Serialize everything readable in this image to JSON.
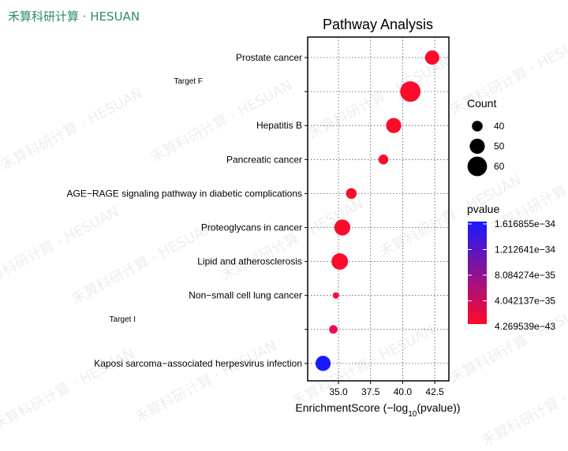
{
  "brand": {
    "text": "禾算科研计算 · HESUAN",
    "color": "#2e8b6e"
  },
  "chart_data": {
    "type": "scatter",
    "title": "Pathway Analysis",
    "xlabel": "EnrichmentScore (−log10(pvalue))",
    "xlim": [
      32.6,
      43.6
    ],
    "xticks": [
      35.0,
      37.5,
      40.0,
      42.5
    ],
    "xtick_labels": [
      "35.0",
      "37.5",
      "40.0",
      "42.5"
    ],
    "grid": true,
    "categories": [
      "Prostate cancer",
      "Target F",
      "Hepatitis B",
      "Pancreatic cancer",
      "AGE−RAGE signaling pathway in diabetic complications",
      "Proteoglycans in cancer",
      "Lipid and atherosclerosis",
      "Non−small cell lung cancer",
      "Target I",
      "Kaposi sarcoma−associated herpesvirus infection"
    ],
    "small_label_categories": [
      "Target F",
      "Target I"
    ],
    "points": [
      {
        "category": "Prostate cancer",
        "x": 42.3,
        "count": 48,
        "color": "#ff0a28"
      },
      {
        "category": "Target F",
        "x": 40.6,
        "count": 62,
        "color": "#ff0a28"
      },
      {
        "category": "Hepatitis B",
        "x": 39.3,
        "count": 50,
        "color": "#ff0a28"
      },
      {
        "category": "Pancreatic cancer",
        "x": 38.5,
        "count": 38,
        "color": "#ff0a28"
      },
      {
        "category": "AGE−RAGE signaling pathway in diabetic complications",
        "x": 36.0,
        "count": 40,
        "color": "#ff0a28"
      },
      {
        "category": "Proteoglycans in cancer",
        "x": 35.3,
        "count": 52,
        "color": "#ff0a2a"
      },
      {
        "category": "Lipid and atherosclerosis",
        "x": 35.1,
        "count": 53,
        "color": "#ff0a2a"
      },
      {
        "category": "Non−small cell lung cancer",
        "x": 34.8,
        "count": 30,
        "color": "#fa0a3a"
      },
      {
        "category": "Target I",
        "x": 34.6,
        "count": 35,
        "color": "#f00a55"
      },
      {
        "category": "Kaposi sarcoma−associated herpesvirus infection",
        "x": 33.8,
        "count": 50,
        "color": "#1a1aff"
      }
    ],
    "size_legend": {
      "title": "Count",
      "entries": [
        {
          "label": "40",
          "count": 40
        },
        {
          "label": "50",
          "count": 50
        },
        {
          "label": "60",
          "count": 60
        }
      ]
    },
    "color_legend": {
      "title": "pvalue",
      "labels": [
        "1.616855e−34",
        "1.212641e−34",
        "8.084274e−35",
        "4.042137e−35",
        "4.269539e−43"
      ],
      "gradient_top": "#1a1aff",
      "gradient_bottom": "#ff0a28"
    }
  }
}
